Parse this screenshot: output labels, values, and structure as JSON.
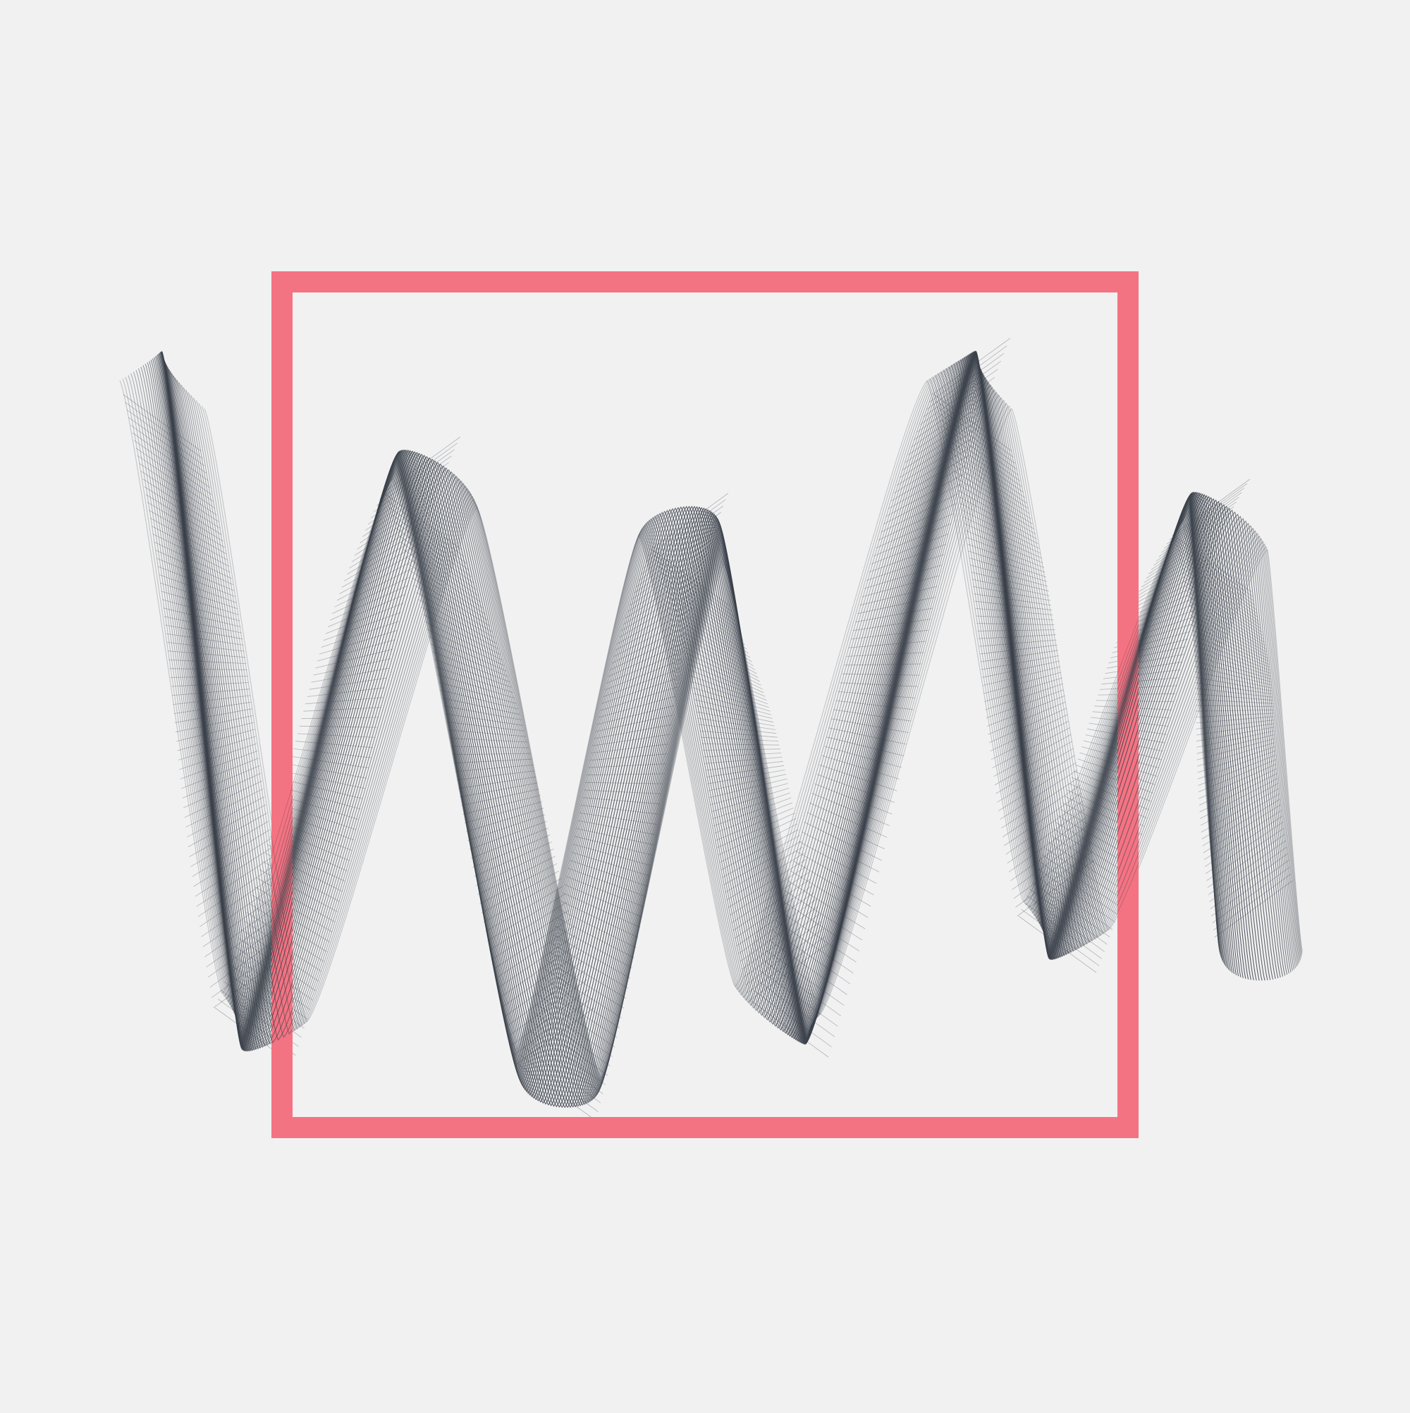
{
  "artwork": {
    "background_color": "#f1f1f1",
    "frame_color": "#f47382",
    "ribbon_color": "#3b414b",
    "icons": {
      "frame": "square-outline",
      "ribbon": "wireframe-zigzag-ribbon"
    }
  }
}
